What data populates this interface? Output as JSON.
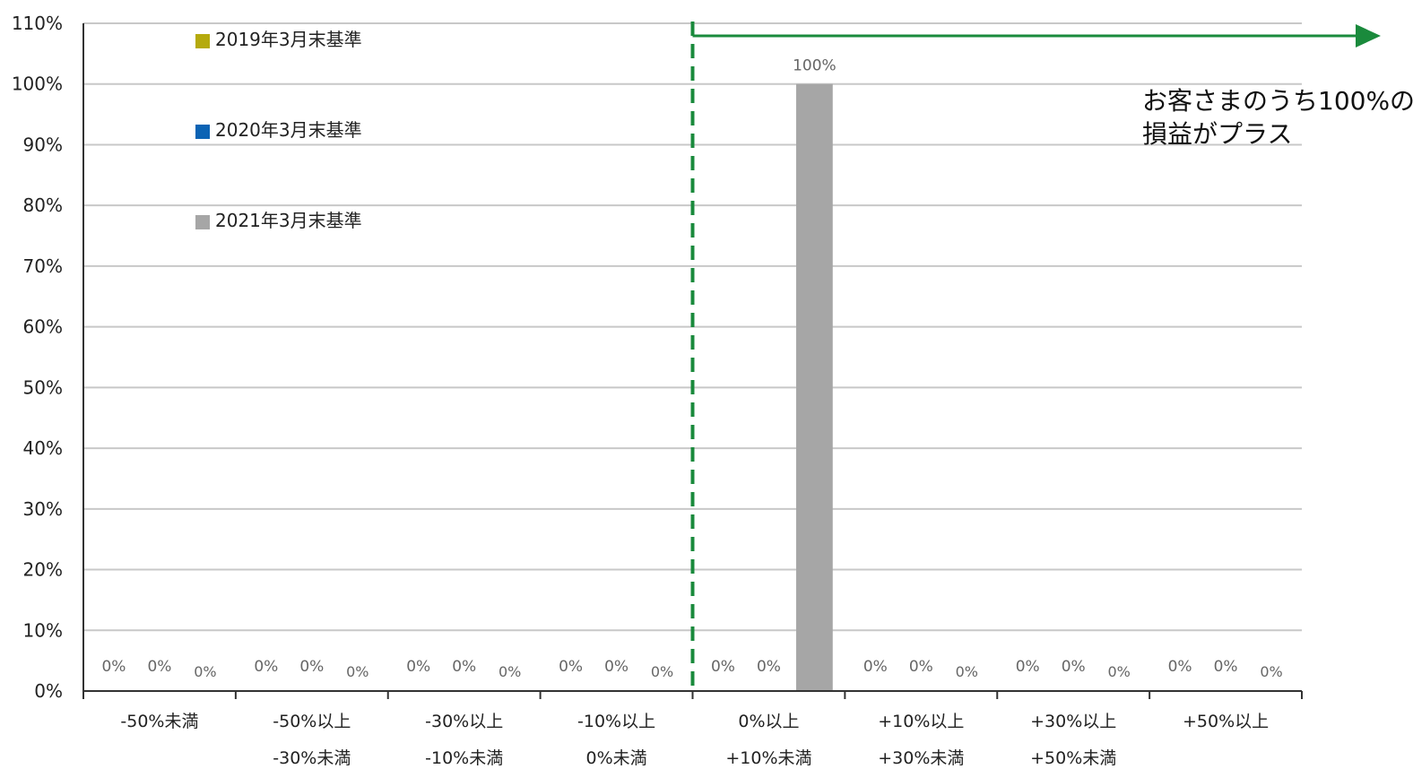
{
  "chart_data": {
    "type": "bar",
    "categories": [
      [
        "-50%未満"
      ],
      [
        "-50%以上",
        "-30%未満"
      ],
      [
        "-30%以上",
        "-10%未満"
      ],
      [
        "-10%以上",
        "0%未満"
      ],
      [
        "0%以上",
        "+10%未満"
      ],
      [
        "+10%以上",
        "+30%未満"
      ],
      [
        "+30%以上",
        "+50%未満"
      ],
      [
        "+50%以上"
      ]
    ],
    "series": [
      {
        "name": "2019年3月末基準",
        "color": "#b5aa0d",
        "values": [
          0,
          0,
          0,
          0,
          0,
          0,
          0,
          0
        ],
        "labels": [
          "0%",
          "0%",
          "0%",
          "0%",
          "0%",
          "0%",
          "0%",
          "0%"
        ]
      },
      {
        "name": "2020年3月末基準",
        "color": "#0b63b4",
        "values": [
          0,
          0,
          0,
          0,
          0,
          0,
          0,
          0
        ],
        "labels": [
          "0%",
          "0%",
          "0%",
          "0%",
          "0%",
          "0%",
          "0%",
          "0%"
        ]
      },
      {
        "name": "2021年3月末基準",
        "color": "#a6a6a6",
        "values": [
          0,
          0,
          0,
          0,
          100,
          0,
          0,
          0
        ],
        "labels": [
          "0%",
          "0%",
          "0%",
          "0%",
          "100%",
          "0%",
          "0%",
          "0%"
        ]
      }
    ],
    "yticks": [
      "0%",
      "10%",
      "20%",
      "30%",
      "40%",
      "50%",
      "60%",
      "70%",
      "80%",
      "90%",
      "100%",
      "110%"
    ],
    "ylim": [
      0,
      110
    ],
    "grid": true,
    "legend_position": "top-left",
    "annotation": {
      "lines": [
        "お客さまのうち100%の",
        "損益がプラス"
      ],
      "divider_between_categories": [
        3,
        4
      ],
      "line_color": "#1a8a3c"
    }
  }
}
